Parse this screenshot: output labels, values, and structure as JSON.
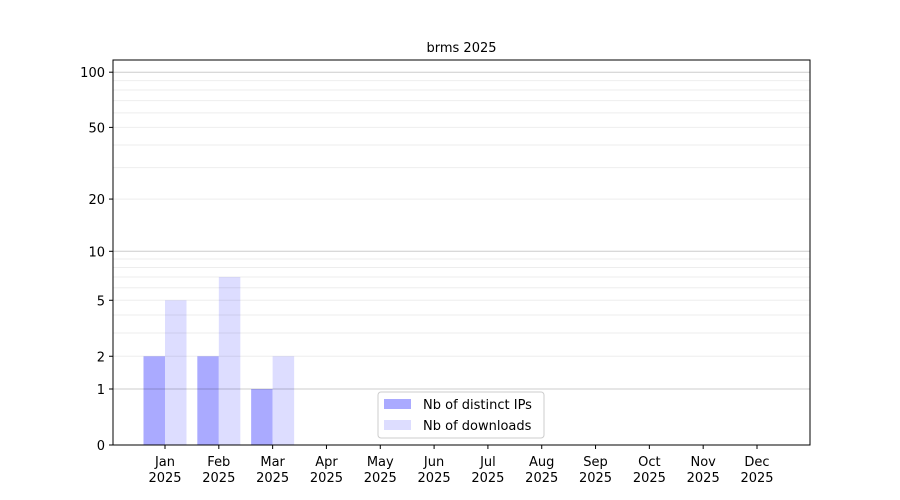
{
  "chart_data": {
    "type": "bar",
    "title": "brms 2025",
    "xlabel": "",
    "ylabel": "",
    "yscale": "symlog (log10(1+y))",
    "ylim": [
      0,
      116
    ],
    "yticks": [
      0,
      1,
      2,
      5,
      10,
      20,
      50,
      100
    ],
    "grid": true,
    "legend_position": "bottom-center",
    "categories": [
      "Jan\n2025",
      "Feb\n2025",
      "Mar\n2025",
      "Apr\n2025",
      "May\n2025",
      "Jun\n2025",
      "Jul\n2025",
      "Aug\n2025",
      "Sep\n2025",
      "Oct\n2025",
      "Nov\n2025",
      "Dec\n2025"
    ],
    "series": [
      {
        "name": "Nb of distinct IPs",
        "color": "#aaaaff",
        "values": [
          2,
          2,
          1,
          0,
          0,
          0,
          0,
          0,
          0,
          0,
          0,
          0
        ]
      },
      {
        "name": "Nb of downloads",
        "color": "#ddddff",
        "values": [
          5,
          7,
          2,
          0,
          0,
          0,
          0,
          0,
          0,
          0,
          0,
          0
        ]
      }
    ]
  }
}
